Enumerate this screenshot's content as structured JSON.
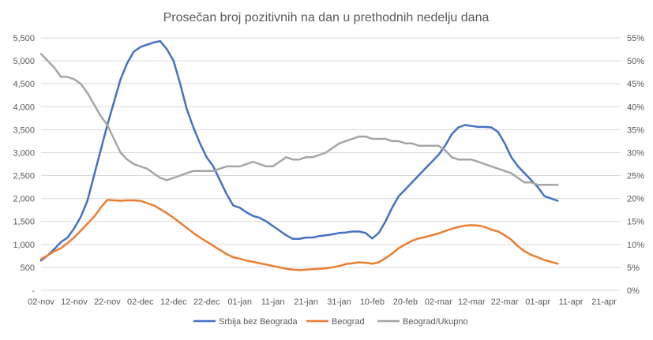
{
  "chart_data": {
    "type": "line",
    "title": "Prosečan broj pozitivnih na dan u prethodnih nedelju dana",
    "x_tick_labels": [
      "02-nov",
      "12-nov",
      "22-nov",
      "02-dec",
      "12-dec",
      "22-dec",
      "01-jan",
      "11-jan",
      "21-jan",
      "31-jan",
      "10-feb",
      "20-feb",
      "02-mar",
      "12-mar",
      "22-mar",
      "01-apr",
      "11-apr",
      "21-apr"
    ],
    "x_range_days": [
      0,
      175
    ],
    "y_left": {
      "tick_labels": [
        "-",
        "500",
        "1,000",
        "1,500",
        "2,000",
        "2,500",
        "3,000",
        "3,500",
        "4,000",
        "4,500",
        "5,000",
        "5,500"
      ],
      "range": [
        0,
        5500
      ]
    },
    "y_right": {
      "tick_labels": [
        "0%",
        "5%",
        "10%",
        "15%",
        "20%",
        "25%",
        "30%",
        "35%",
        "40%",
        "45%",
        "50%",
        "55%"
      ],
      "range": [
        0,
        55
      ]
    },
    "grid": "horizontal",
    "legend_position": "bottom",
    "series": [
      {
        "name": "Srbija bez Beograda",
        "axis": "left",
        "color": "#4472c4",
        "points": [
          [
            0,
            650
          ],
          [
            2,
            760
          ],
          [
            4,
            900
          ],
          [
            6,
            1050
          ],
          [
            8,
            1150
          ],
          [
            10,
            1350
          ],
          [
            12,
            1600
          ],
          [
            14,
            1950
          ],
          [
            16,
            2500
          ],
          [
            18,
            3050
          ],
          [
            20,
            3600
          ],
          [
            22,
            4100
          ],
          [
            24,
            4600
          ],
          [
            26,
            4950
          ],
          [
            28,
            5200
          ],
          [
            30,
            5300
          ],
          [
            32,
            5350
          ],
          [
            34,
            5400
          ],
          [
            36,
            5430
          ],
          [
            38,
            5250
          ],
          [
            40,
            5000
          ],
          [
            42,
            4500
          ],
          [
            44,
            3950
          ],
          [
            46,
            3550
          ],
          [
            48,
            3200
          ],
          [
            50,
            2900
          ],
          [
            52,
            2700
          ],
          [
            54,
            2400
          ],
          [
            56,
            2100
          ],
          [
            58,
            1850
          ],
          [
            60,
            1800
          ],
          [
            62,
            1700
          ],
          [
            64,
            1620
          ],
          [
            66,
            1580
          ],
          [
            68,
            1500
          ],
          [
            70,
            1400
          ],
          [
            72,
            1300
          ],
          [
            74,
            1200
          ],
          [
            76,
            1120
          ],
          [
            78,
            1120
          ],
          [
            80,
            1150
          ],
          [
            82,
            1150
          ],
          [
            84,
            1180
          ],
          [
            86,
            1200
          ],
          [
            88,
            1220
          ],
          [
            90,
            1250
          ],
          [
            92,
            1260
          ],
          [
            94,
            1280
          ],
          [
            96,
            1280
          ],
          [
            98,
            1250
          ],
          [
            100,
            1130
          ],
          [
            102,
            1250
          ],
          [
            104,
            1500
          ],
          [
            106,
            1800
          ],
          [
            108,
            2050
          ],
          [
            110,
            2200
          ],
          [
            112,
            2350
          ],
          [
            114,
            2500
          ],
          [
            116,
            2650
          ],
          [
            118,
            2800
          ],
          [
            120,
            2950
          ],
          [
            122,
            3150
          ],
          [
            124,
            3400
          ],
          [
            126,
            3550
          ],
          [
            128,
            3600
          ],
          [
            130,
            3580
          ],
          [
            132,
            3560
          ],
          [
            134,
            3560
          ],
          [
            136,
            3550
          ],
          [
            138,
            3450
          ],
          [
            140,
            3200
          ],
          [
            142,
            2900
          ],
          [
            144,
            2700
          ],
          [
            146,
            2550
          ],
          [
            148,
            2400
          ],
          [
            150,
            2250
          ],
          [
            152,
            2050
          ],
          [
            154,
            2000
          ],
          [
            156,
            1950
          ]
        ]
      },
      {
        "name": "Beograd",
        "axis": "left",
        "color": "#ed7d31",
        "points": [
          [
            0,
            680
          ],
          [
            2,
            760
          ],
          [
            4,
            850
          ],
          [
            6,
            920
          ],
          [
            8,
            1030
          ],
          [
            10,
            1150
          ],
          [
            12,
            1300
          ],
          [
            14,
            1450
          ],
          [
            16,
            1600
          ],
          [
            18,
            1800
          ],
          [
            20,
            1970
          ],
          [
            22,
            1960
          ],
          [
            24,
            1950
          ],
          [
            26,
            1960
          ],
          [
            28,
            1960
          ],
          [
            30,
            1950
          ],
          [
            32,
            1900
          ],
          [
            34,
            1850
          ],
          [
            36,
            1770
          ],
          [
            38,
            1680
          ],
          [
            40,
            1580
          ],
          [
            42,
            1470
          ],
          [
            44,
            1360
          ],
          [
            46,
            1250
          ],
          [
            48,
            1150
          ],
          [
            50,
            1060
          ],
          [
            52,
            970
          ],
          [
            54,
            880
          ],
          [
            56,
            790
          ],
          [
            58,
            720
          ],
          [
            60,
            690
          ],
          [
            62,
            650
          ],
          [
            64,
            620
          ],
          [
            66,
            590
          ],
          [
            68,
            560
          ],
          [
            70,
            530
          ],
          [
            72,
            500
          ],
          [
            74,
            470
          ],
          [
            76,
            450
          ],
          [
            78,
            440
          ],
          [
            80,
            450
          ],
          [
            82,
            460
          ],
          [
            84,
            470
          ],
          [
            86,
            480
          ],
          [
            88,
            500
          ],
          [
            90,
            530
          ],
          [
            92,
            570
          ],
          [
            94,
            590
          ],
          [
            96,
            610
          ],
          [
            98,
            600
          ],
          [
            100,
            580
          ],
          [
            102,
            610
          ],
          [
            104,
            700
          ],
          [
            106,
            800
          ],
          [
            108,
            920
          ],
          [
            110,
            1000
          ],
          [
            112,
            1080
          ],
          [
            114,
            1130
          ],
          [
            116,
            1160
          ],
          [
            118,
            1200
          ],
          [
            120,
            1240
          ],
          [
            122,
            1290
          ],
          [
            124,
            1340
          ],
          [
            126,
            1380
          ],
          [
            128,
            1410
          ],
          [
            130,
            1420
          ],
          [
            132,
            1410
          ],
          [
            134,
            1380
          ],
          [
            136,
            1320
          ],
          [
            138,
            1280
          ],
          [
            140,
            1200
          ],
          [
            142,
            1100
          ],
          [
            144,
            960
          ],
          [
            146,
            850
          ],
          [
            148,
            770
          ],
          [
            150,
            720
          ],
          [
            152,
            660
          ],
          [
            154,
            620
          ],
          [
            156,
            580
          ]
        ]
      },
      {
        "name": "Beograd/Ukupno",
        "axis": "right",
        "color": "#a5a5a5",
        "points": [
          [
            0,
            51.5
          ],
          [
            2,
            50
          ],
          [
            4,
            48.5
          ],
          [
            6,
            46.5
          ],
          [
            8,
            46.5
          ],
          [
            10,
            46
          ],
          [
            12,
            45
          ],
          [
            14,
            43
          ],
          [
            16,
            40.5
          ],
          [
            18,
            38
          ],
          [
            20,
            36
          ],
          [
            22,
            33
          ],
          [
            24,
            30
          ],
          [
            26,
            28.5
          ],
          [
            28,
            27.5
          ],
          [
            30,
            27
          ],
          [
            32,
            26.5
          ],
          [
            34,
            25.5
          ],
          [
            36,
            24.5
          ],
          [
            38,
            24
          ],
          [
            40,
            24.5
          ],
          [
            42,
            25
          ],
          [
            44,
            25.5
          ],
          [
            46,
            26
          ],
          [
            48,
            26
          ],
          [
            50,
            26
          ],
          [
            52,
            26
          ],
          [
            54,
            26.5
          ],
          [
            56,
            27
          ],
          [
            58,
            27
          ],
          [
            60,
            27
          ],
          [
            62,
            27.5
          ],
          [
            64,
            28
          ],
          [
            66,
            27.5
          ],
          [
            68,
            27
          ],
          [
            70,
            27
          ],
          [
            72,
            28
          ],
          [
            74,
            29
          ],
          [
            76,
            28.5
          ],
          [
            78,
            28.5
          ],
          [
            80,
            29
          ],
          [
            82,
            29
          ],
          [
            84,
            29.5
          ],
          [
            86,
            30
          ],
          [
            88,
            31
          ],
          [
            90,
            32
          ],
          [
            92,
            32.5
          ],
          [
            94,
            33
          ],
          [
            96,
            33.5
          ],
          [
            98,
            33.5
          ],
          [
            100,
            33
          ],
          [
            102,
            33
          ],
          [
            104,
            33
          ],
          [
            106,
            32.5
          ],
          [
            108,
            32.5
          ],
          [
            110,
            32
          ],
          [
            112,
            32
          ],
          [
            114,
            31.5
          ],
          [
            116,
            31.5
          ],
          [
            118,
            31.5
          ],
          [
            120,
            31.5
          ],
          [
            122,
            30.5
          ],
          [
            124,
            29
          ],
          [
            126,
            28.5
          ],
          [
            128,
            28.5
          ],
          [
            130,
            28.5
          ],
          [
            132,
            28
          ],
          [
            134,
            27.5
          ],
          [
            136,
            27
          ],
          [
            138,
            26.5
          ],
          [
            140,
            26
          ],
          [
            142,
            25.5
          ],
          [
            144,
            24.5
          ],
          [
            146,
            23.5
          ],
          [
            148,
            23.5
          ],
          [
            150,
            23
          ],
          [
            152,
            23
          ],
          [
            154,
            23
          ],
          [
            156,
            23
          ]
        ]
      }
    ]
  }
}
